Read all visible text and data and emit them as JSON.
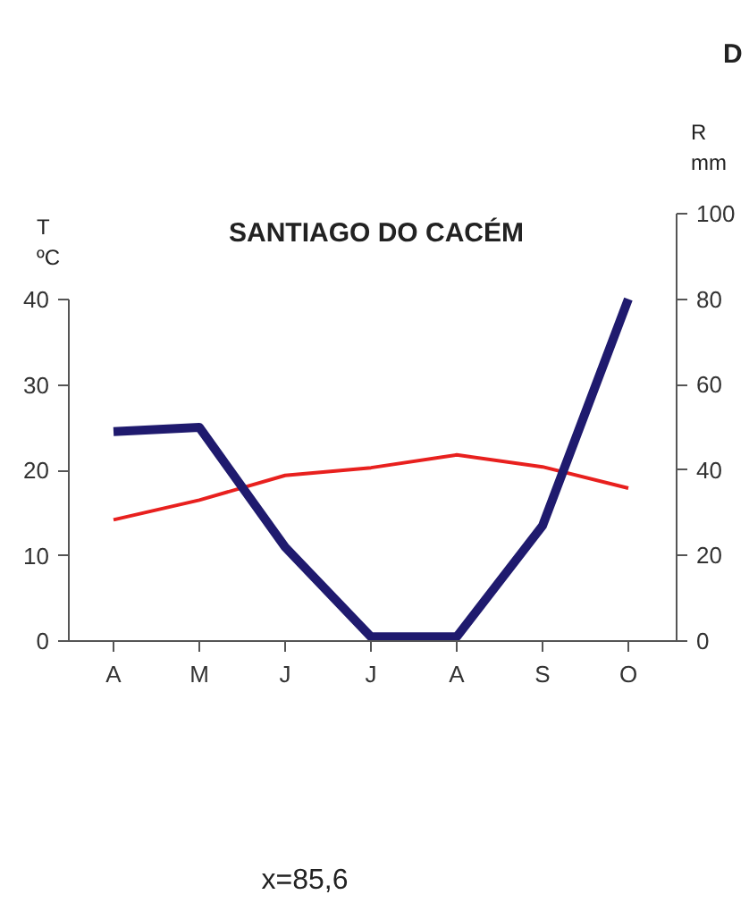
{
  "chart_data": {
    "type": "line",
    "title": "SANTIAGO DO CACÉM",
    "ylabel": "T ºC",
    "y2label": "R mm",
    "categories": [
      "A",
      "M",
      "J",
      "J",
      "A",
      "S",
      "O"
    ],
    "series": [
      {
        "color": "#e8201e",
        "values": [
          14.2,
          16.5,
          19.4,
          20.3,
          21.8,
          20.4,
          17.9
        ]
      },
      {
        "axis": "y2",
        "color": "#1f1a6e",
        "values": [
          49,
          50,
          22,
          1,
          1,
          27,
          80
        ]
      }
    ],
    "ylim": [
      0,
      40
    ],
    "yticks": [
      0,
      10,
      20,
      30,
      40
    ],
    "y2lim": [
      0,
      100
    ],
    "y2ticks": [
      0,
      20,
      40,
      60,
      80,
      100
    ],
    "grid": false,
    "annotations": [
      "x=85,6",
      "D"
    ]
  }
}
